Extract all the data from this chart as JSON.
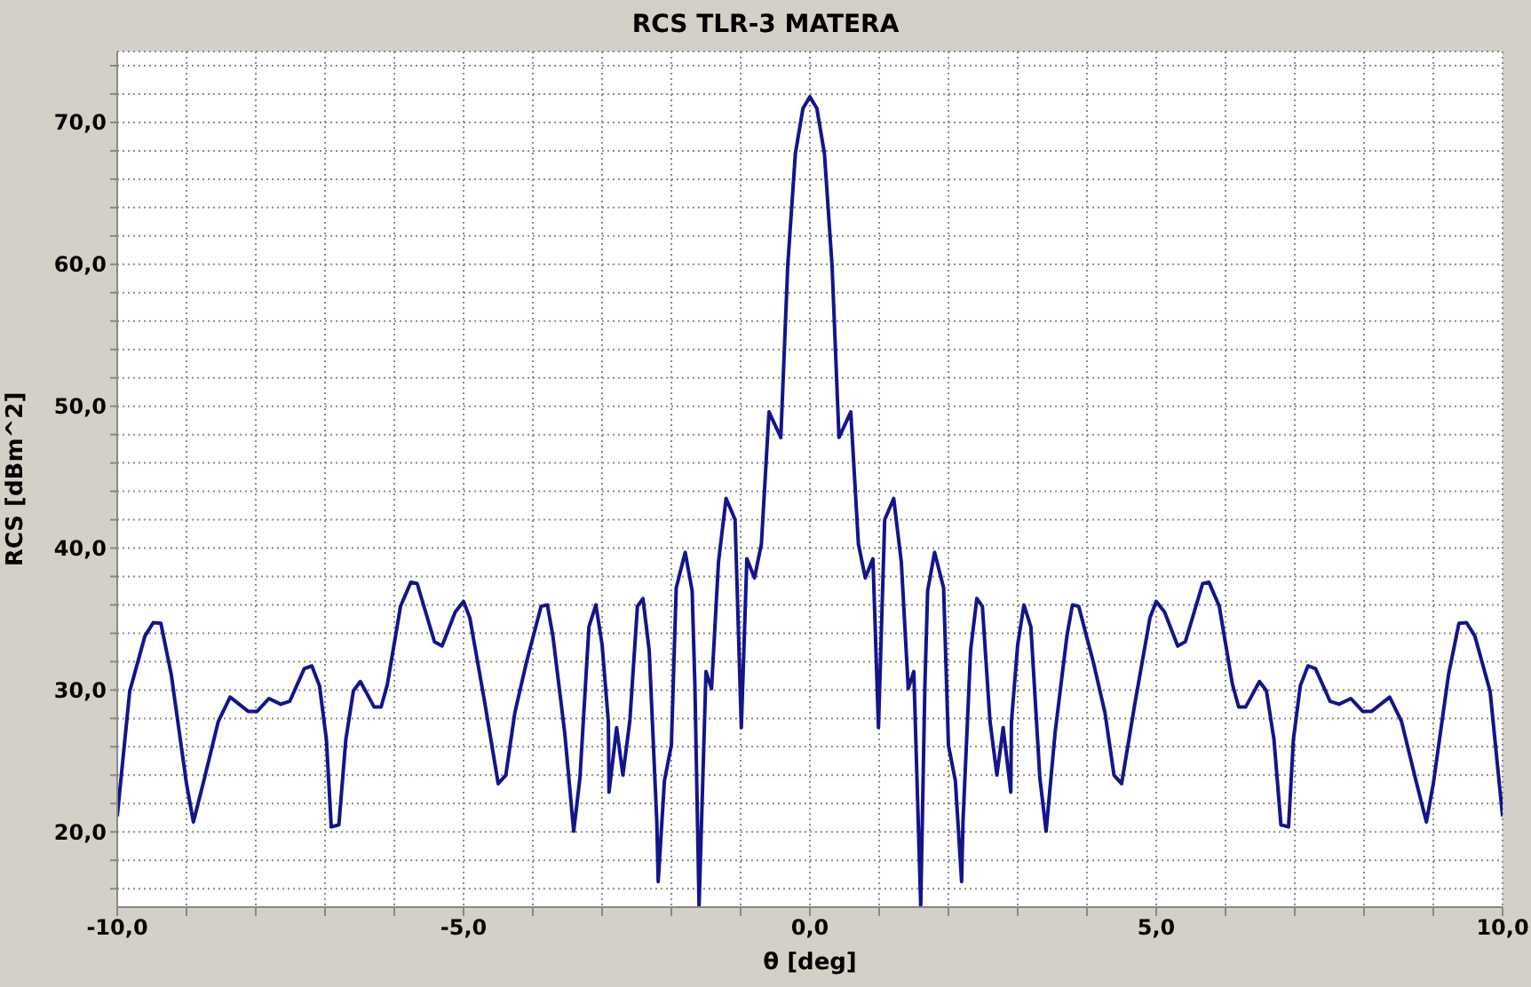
{
  "chart_data": {
    "type": "line",
    "title": "RCS TLR-3 MATERA",
    "xlabel": "θ [deg]",
    "ylabel": "RCS [dBm^2]",
    "x": [
      -10.0,
      -9.82,
      -9.6,
      -9.48,
      -9.37,
      -9.22,
      -9.0,
      -8.9,
      -8.75,
      -8.54,
      -8.37,
      -8.11,
      -7.98,
      -7.81,
      -7.64,
      -7.51,
      -7.3,
      -7.19,
      -7.08,
      -6.98,
      -6.91,
      -6.8,
      -6.7,
      -6.59,
      -6.49,
      -6.29,
      -6.19,
      -6.1,
      -5.91,
      -5.76,
      -5.67,
      -5.42,
      -5.31,
      -5.12,
      -5.0,
      -4.91,
      -4.69,
      -4.5,
      -4.39,
      -4.26,
      -4.09,
      -3.88,
      -3.79,
      -3.71,
      -3.54,
      -3.41,
      -3.32,
      -3.19,
      -3.09,
      -3.0,
      -2.91,
      -2.9,
      -2.79,
      -2.7,
      -2.6,
      -2.49,
      -2.41,
      -2.32,
      -2.21,
      -2.19,
      -2.1,
      -2.0,
      -1.93,
      -1.8,
      -1.7,
      -1.66,
      -1.6,
      -1.5,
      -1.42,
      -1.32,
      -1.21,
      -1.08,
      -0.99,
      -0.91,
      -0.8,
      -0.7,
      -0.59,
      -0.42,
      -0.32,
      -0.21,
      -0.1,
      0,
      0.1,
      0.21,
      0.32,
      0.42,
      0.59,
      0.7,
      0.8,
      0.91,
      0.99,
      1.08,
      1.21,
      1.32,
      1.42,
      1.5,
      1.6,
      1.66,
      1.7,
      1.8,
      1.93,
      2.0,
      2.1,
      2.19,
      2.21,
      2.32,
      2.41,
      2.49,
      2.6,
      2.7,
      2.79,
      2.9,
      2.91,
      3.0,
      3.09,
      3.19,
      3.32,
      3.41,
      3.54,
      3.71,
      3.79,
      3.88,
      4.09,
      4.26,
      4.39,
      4.5,
      4.69,
      4.91,
      5.0,
      5.12,
      5.31,
      5.42,
      5.67,
      5.76,
      5.91,
      6.1,
      6.19,
      6.29,
      6.49,
      6.59,
      6.7,
      6.8,
      6.91,
      6.98,
      7.08,
      7.19,
      7.3,
      7.51,
      7.64,
      7.81,
      7.98,
      8.11,
      8.37,
      8.54,
      8.75,
      8.9,
      9.0,
      9.22,
      9.37,
      9.48,
      9.6,
      9.82,
      10.0
    ],
    "series": [
      {
        "color": "#14148c",
        "values": [
          21.1,
          29.9,
          33.8,
          34.75,
          34.7,
          31.1,
          23.4,
          20.7,
          23.6,
          27.8,
          29.5,
          28.5,
          28.5,
          29.4,
          29.0,
          29.2,
          31.5,
          31.7,
          30.3,
          26.5,
          20.35,
          20.5,
          26.5,
          29.95,
          30.6,
          28.8,
          28.8,
          30.4,
          35.9,
          37.6,
          37.5,
          33.4,
          33.1,
          35.5,
          36.25,
          35.1,
          29.0,
          23.4,
          24.0,
          28.4,
          32.0,
          35.9,
          36.0,
          33.8,
          27.0,
          20.05,
          23.8,
          34.45,
          36.0,
          33.2,
          27.8,
          22.8,
          27.35,
          24.0,
          27.8,
          35.9,
          36.45,
          32.8,
          20.7,
          16.5,
          23.6,
          26.1,
          37.2,
          39.7,
          37.0,
          30.3,
          14.8,
          31.3,
          30.1,
          39.0,
          43.5,
          42.0,
          27.35,
          39.25,
          37.9,
          40.3,
          49.6,
          47.8,
          59.9,
          67.8,
          71.0,
          71.8,
          71.0,
          67.8,
          59.9,
          47.8,
          49.6,
          40.3,
          37.9,
          39.25,
          27.35,
          42.0,
          43.5,
          39.0,
          30.1,
          31.3,
          14.8,
          30.3,
          37.0,
          39.7,
          37.2,
          26.1,
          23.6,
          16.5,
          20.7,
          32.8,
          36.45,
          35.9,
          27.8,
          24.0,
          27.35,
          22.8,
          27.8,
          33.2,
          36.0,
          34.45,
          23.8,
          20.05,
          27.0,
          33.8,
          36.0,
          35.9,
          32.0,
          28.4,
          24.0,
          23.4,
          29.0,
          35.1,
          36.25,
          35.5,
          33.1,
          33.4,
          37.5,
          37.6,
          35.9,
          30.4,
          28.8,
          28.8,
          30.6,
          29.95,
          26.5,
          20.5,
          20.35,
          26.5,
          30.3,
          31.7,
          31.5,
          29.2,
          29.0,
          29.4,
          28.5,
          28.5,
          29.5,
          27.8,
          23.6,
          20.7,
          23.4,
          31.1,
          34.7,
          34.75,
          33.8,
          29.9,
          21.1
        ]
      }
    ],
    "xlim": [
      -10,
      10
    ],
    "xticks": [
      {
        "value": -10,
        "label": "-10,0"
      },
      {
        "value": -9,
        "label": null
      },
      {
        "value": -8,
        "label": null
      },
      {
        "value": -7,
        "label": null
      },
      {
        "value": -6,
        "label": null
      },
      {
        "value": -5,
        "label": "-5,0"
      },
      {
        "value": -4,
        "label": null
      },
      {
        "value": -3,
        "label": null
      },
      {
        "value": -2,
        "label": null
      },
      {
        "value": -1,
        "label": null
      },
      {
        "value": 0,
        "label": "0,0"
      },
      {
        "value": 1,
        "label": null
      },
      {
        "value": 2,
        "label": null
      },
      {
        "value": 3,
        "label": null
      },
      {
        "value": 4,
        "label": null
      },
      {
        "value": 5,
        "label": "5,0"
      },
      {
        "value": 6,
        "label": null
      },
      {
        "value": 7,
        "label": null
      },
      {
        "value": 8,
        "label": null
      },
      {
        "value": 9,
        "label": null
      },
      {
        "value": 10,
        "label": "10,0"
      }
    ],
    "ylim": [
      14.7,
      75
    ],
    "yticks": [
      {
        "value": 16,
        "label": null
      },
      {
        "value": 18,
        "label": null
      },
      {
        "value": 20,
        "label": "20,0"
      },
      {
        "value": 22,
        "label": null
      },
      {
        "value": 24,
        "label": null
      },
      {
        "value": 26,
        "label": null
      },
      {
        "value": 28,
        "label": null
      },
      {
        "value": 30,
        "label": "30,0"
      },
      {
        "value": 32,
        "label": null
      },
      {
        "value": 34,
        "label": null
      },
      {
        "value": 36,
        "label": null
      },
      {
        "value": 38,
        "label": null
      },
      {
        "value": 40,
        "label": "40,0"
      },
      {
        "value": 42,
        "label": null
      },
      {
        "value": 44,
        "label": null
      },
      {
        "value": 46,
        "label": null
      },
      {
        "value": 48,
        "label": null
      },
      {
        "value": 50,
        "label": "50,0"
      },
      {
        "value": 52,
        "label": null
      },
      {
        "value": 54,
        "label": null
      },
      {
        "value": 56,
        "label": null
      },
      {
        "value": 58,
        "label": null
      },
      {
        "value": 60,
        "label": "60,0"
      },
      {
        "value": 62,
        "label": null
      },
      {
        "value": 64,
        "label": null
      },
      {
        "value": 66,
        "label": null
      },
      {
        "value": 68,
        "label": null
      },
      {
        "value": 70,
        "label": "70,0"
      },
      {
        "value": 72,
        "label": null
      },
      {
        "value": 74,
        "label": null
      }
    ],
    "grid": true,
    "line_style": "solid",
    "marker": "none"
  }
}
